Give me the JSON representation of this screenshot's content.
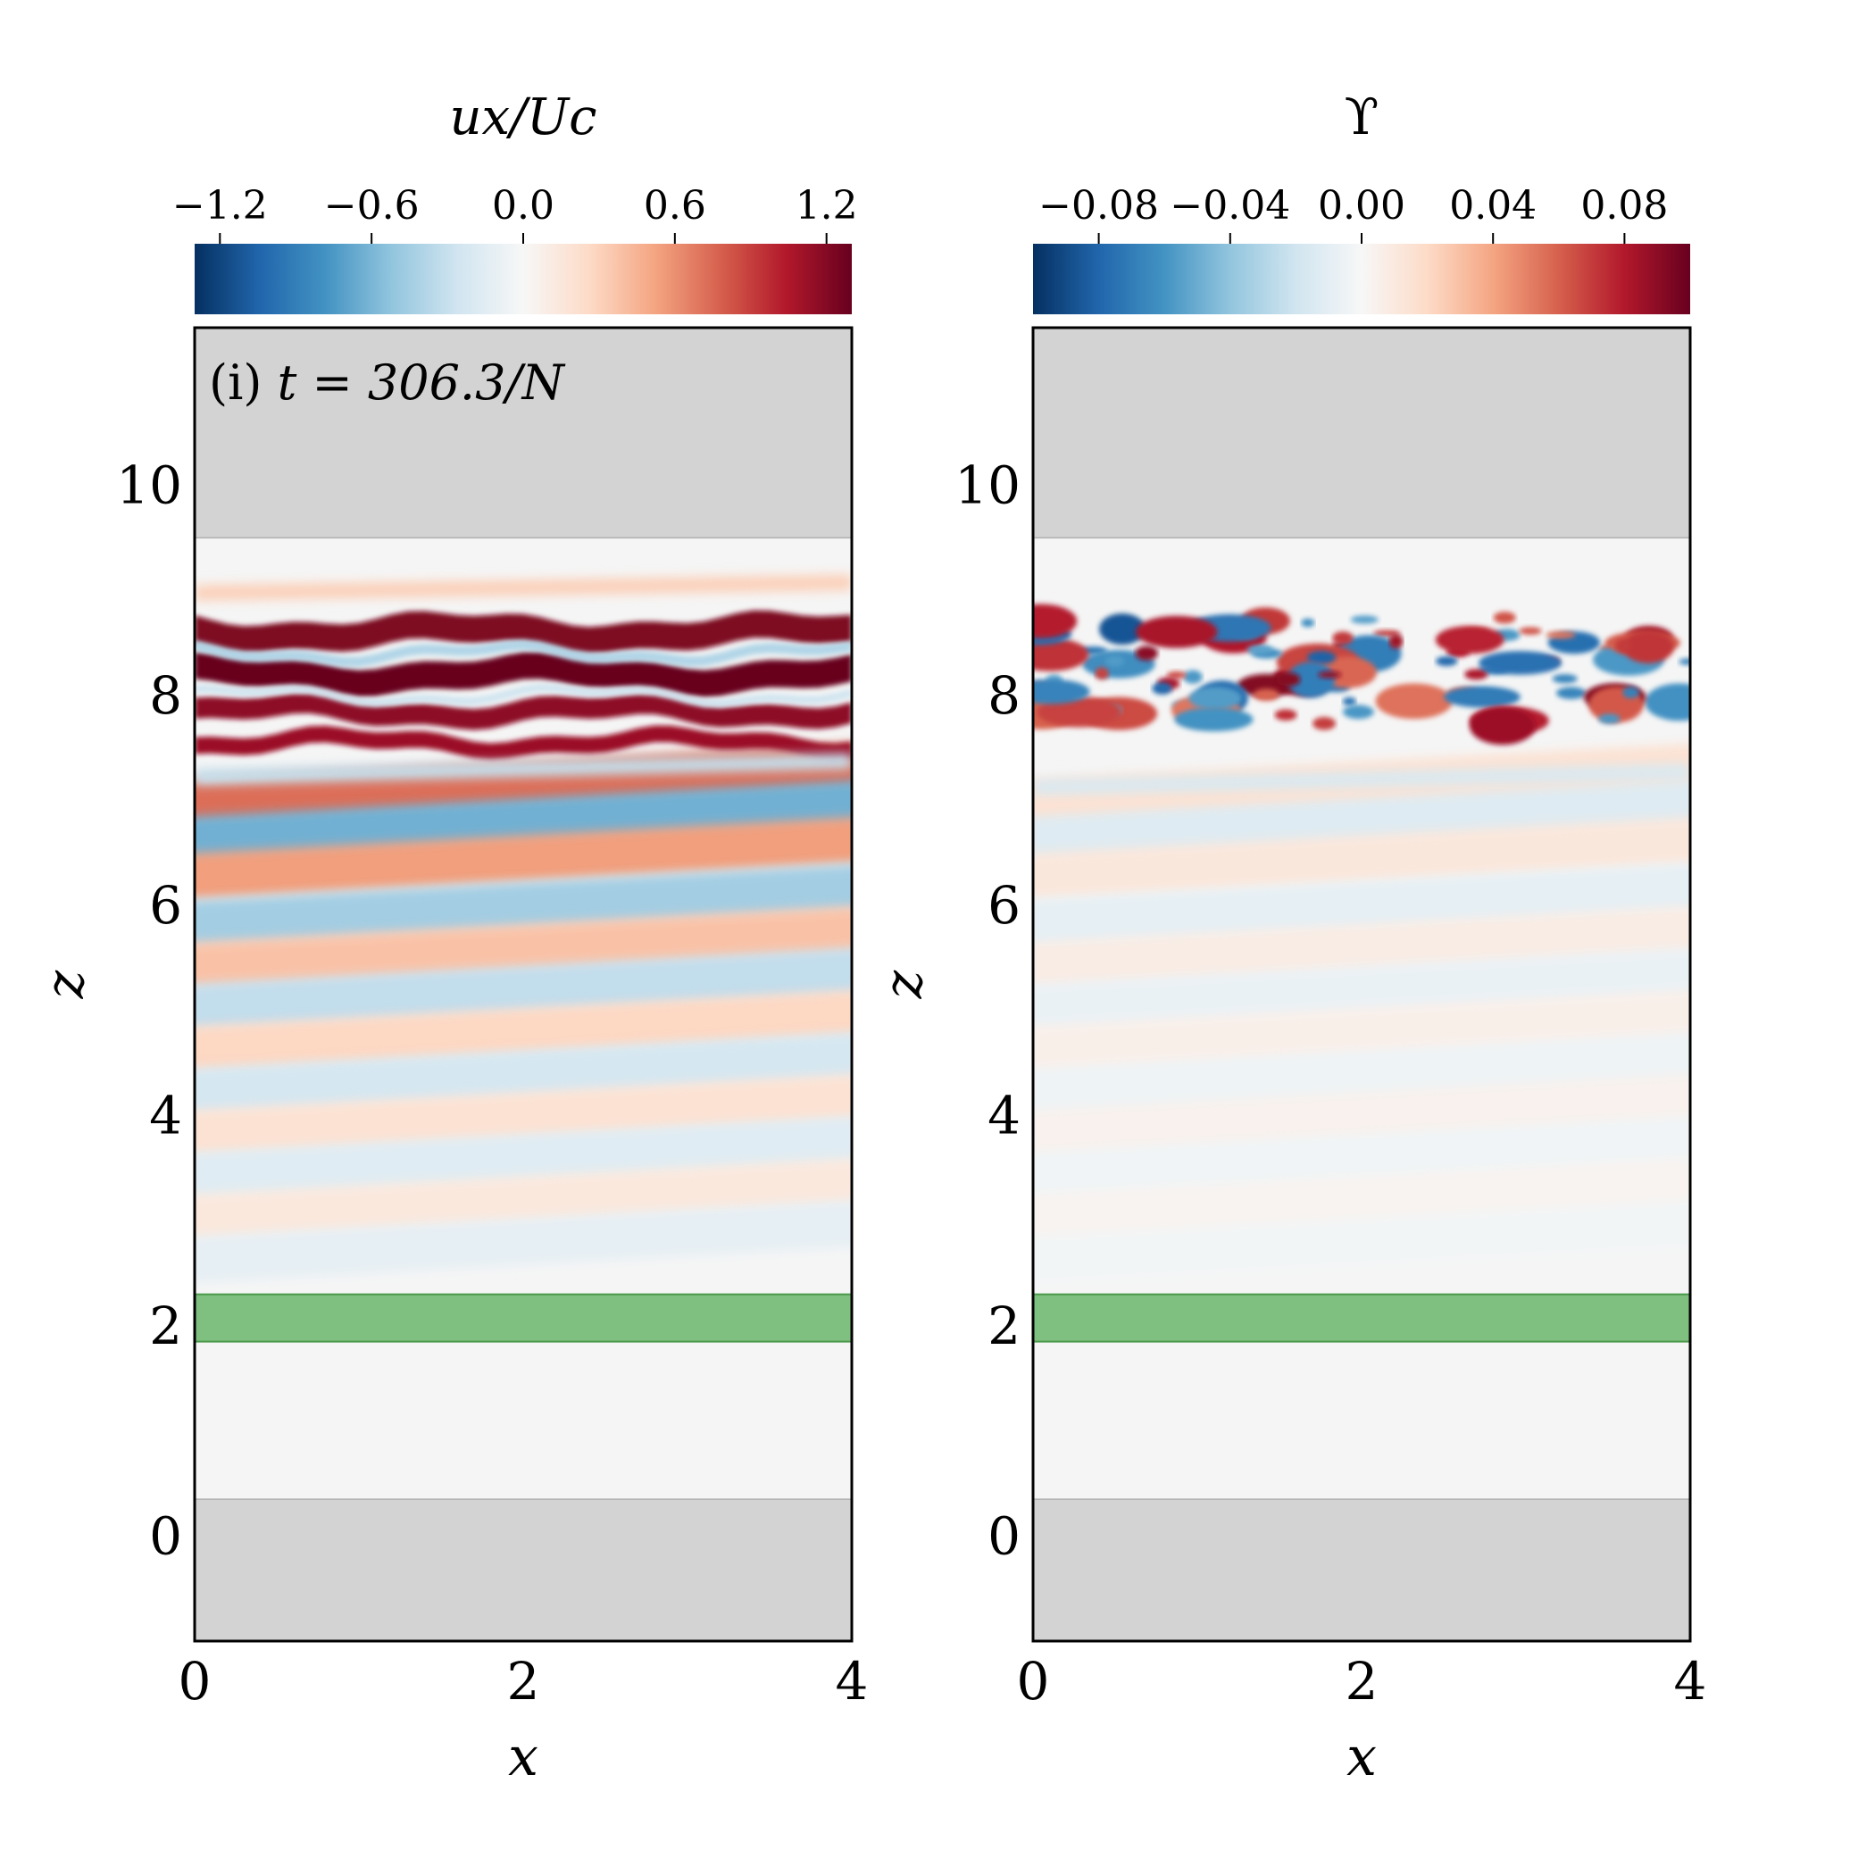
{
  "chart_data": [
    {
      "type": "heatmap",
      "panel_label": "(i)",
      "annotation": "t = 306.3/N",
      "colorbar": {
        "label": "ux/Uc",
        "ticks": [
          "−1.2",
          "−0.6",
          "0.0",
          "0.6",
          "1.2"
        ],
        "tick_values": [
          -1.2,
          -0.6,
          0.0,
          0.6,
          1.2
        ],
        "range": [
          -1.3,
          1.3
        ],
        "colormap": "RdBu_r"
      },
      "xlabel": "x",
      "ylabel": "z",
      "xlim": [
        0,
        4
      ],
      "ylim": [
        -1,
        11.5
      ],
      "xticks": [
        "0",
        "2",
        "4"
      ],
      "xtick_values": [
        0,
        2,
        4
      ],
      "yticks": [
        "0",
        "2",
        "4",
        "6",
        "8",
        "10"
      ],
      "ytick_values": [
        0,
        2,
        4,
        6,
        8,
        10
      ],
      "masked_regions": [
        {
          "name": "top-sponge",
          "z_range": [
            9.5,
            11.5
          ],
          "color": "#d3d3d3"
        },
        {
          "name": "bottom-sponge",
          "z_range": [
            -1,
            0.35
          ],
          "color": "#d3d3d3"
        },
        {
          "name": "forcing-band",
          "z_range": [
            1.85,
            2.3
          ],
          "color": "#7fbf7f"
        }
      ]
    },
    {
      "type": "heatmap",
      "colorbar": {
        "label": "ϒ",
        "ticks": [
          "−0.08",
          "−0.04",
          "0.00",
          "0.04",
          "0.08"
        ],
        "tick_values": [
          -0.08,
          -0.04,
          0.0,
          0.04,
          0.08
        ],
        "range": [
          -0.1,
          0.1
        ],
        "colormap": "RdBu_r"
      },
      "xlabel": "x",
      "ylabel": "z",
      "xlim": [
        0,
        4
      ],
      "ylim": [
        -1,
        11.5
      ],
      "xticks": [
        "0",
        "2",
        "4"
      ],
      "xtick_values": [
        0,
        2,
        4
      ],
      "yticks": [
        "0",
        "2",
        "4",
        "6",
        "8",
        "10"
      ],
      "ytick_values": [
        0,
        2,
        4,
        6,
        8,
        10
      ],
      "masked_regions": [
        {
          "name": "top-sponge",
          "z_range": [
            9.5,
            11.5
          ],
          "color": "#d3d3d3"
        },
        {
          "name": "bottom-sponge",
          "z_range": [
            -1,
            0.35
          ],
          "color": "#d3d3d3"
        },
        {
          "name": "forcing-band",
          "z_range": [
            1.85,
            2.3
          ],
          "color": "#7fbf7f"
        }
      ]
    }
  ]
}
